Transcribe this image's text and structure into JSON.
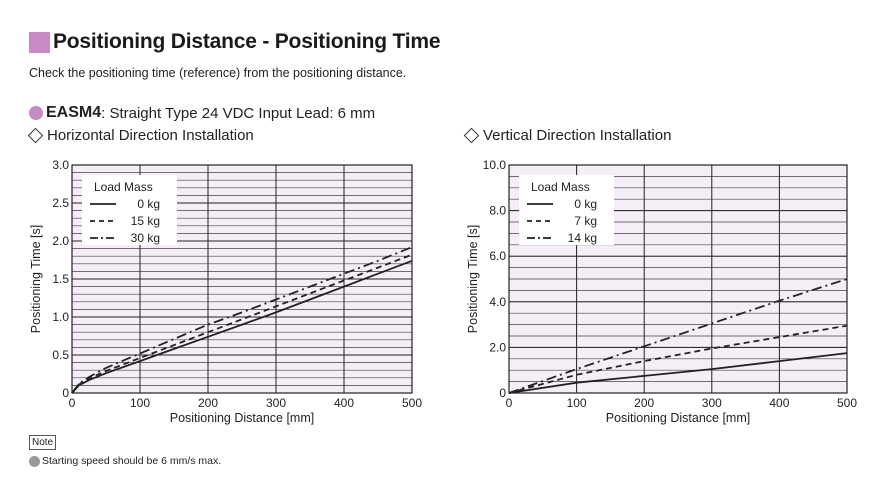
{
  "header": {
    "title": "Positioning Distance - Positioning Time",
    "subtitle": "Check the positioning time (reference) from the positioning distance."
  },
  "product": {
    "name": "EASM4",
    "spec": ": Straight Type  24 VDC Input  Lead: 6 mm"
  },
  "sections": {
    "horizontal": "Horizontal Direction Installation",
    "vertical": "Vertical Direction Installation"
  },
  "note": {
    "label": "Note",
    "text": "Starting speed should be 6 mm/s max."
  },
  "colors": {
    "accent": "#c88ac4",
    "plot_bg": "#f5eef6",
    "line": "#222222"
  },
  "chart_data": [
    {
      "type": "line",
      "xlabel": "Positioning Distance [mm]",
      "ylabel": "Positioning Time [s]",
      "xlim": [
        0,
        500
      ],
      "ylim": [
        0,
        3.0
      ],
      "xticks": [
        0,
        100,
        200,
        300,
        400,
        500
      ],
      "xtick_labels": [
        "0",
        "100",
        "200",
        "300",
        "400",
        "500"
      ],
      "yticks": [
        0,
        0.5,
        1.0,
        1.5,
        2.0,
        2.5,
        3.0
      ],
      "ytick_labels": [
        "0",
        "0.5",
        "1.0",
        "1.5",
        "2.0",
        "2.5",
        "3.0"
      ],
      "legend_title": "Load Mass",
      "legend_position": "top-left",
      "grid": true,
      "series": [
        {
          "name": "0 kg",
          "style": "solid",
          "x": [
            0,
            10,
            25,
            50,
            100,
            150,
            200,
            250,
            300,
            350,
            400,
            450,
            500
          ],
          "y": [
            0,
            0.1,
            0.17,
            0.26,
            0.42,
            0.58,
            0.74,
            0.9,
            1.06,
            1.23,
            1.4,
            1.57,
            1.74
          ]
        },
        {
          "name": "15 kg",
          "style": "dashed",
          "x": [
            0,
            10,
            25,
            50,
            100,
            150,
            200,
            250,
            300,
            350,
            400,
            450,
            500
          ],
          "y": [
            0,
            0.11,
            0.19,
            0.29,
            0.46,
            0.63,
            0.8,
            0.97,
            1.14,
            1.31,
            1.48,
            1.65,
            1.82
          ]
        },
        {
          "name": "30 kg",
          "style": "dashdot",
          "x": [
            0,
            10,
            25,
            50,
            100,
            150,
            200,
            250,
            300,
            350,
            400,
            450,
            500
          ],
          "y": [
            0,
            0.12,
            0.21,
            0.33,
            0.52,
            0.71,
            0.9,
            1.06,
            1.23,
            1.4,
            1.57,
            1.74,
            1.92
          ]
        }
      ]
    },
    {
      "type": "line",
      "xlabel": "Positioning Distance [mm]",
      "ylabel": "Positioning Time [s]",
      "xlim": [
        0,
        500
      ],
      "ylim": [
        0,
        10.0
      ],
      "xticks": [
        0,
        100,
        200,
        300,
        400,
        500
      ],
      "xtick_labels": [
        "0",
        "100",
        "200",
        "300",
        "400",
        "500"
      ],
      "yticks": [
        0,
        2.0,
        4.0,
        6.0,
        8.0,
        10.0
      ],
      "ytick_labels": [
        "0",
        "2.0",
        "4.0",
        "6.0",
        "8.0",
        "10.0"
      ],
      "legend_title": "Load Mass",
      "legend_position": "top-left",
      "grid": true,
      "series": [
        {
          "name": "0 kg",
          "style": "solid",
          "x": [
            0,
            100,
            200,
            300,
            400,
            500
          ],
          "y": [
            0,
            0.45,
            0.75,
            1.05,
            1.4,
            1.75
          ]
        },
        {
          "name": "7 kg",
          "style": "dashed",
          "x": [
            0,
            100,
            200,
            300,
            400,
            500
          ],
          "y": [
            0,
            0.8,
            1.4,
            1.95,
            2.45,
            2.95
          ]
        },
        {
          "name": "14 kg",
          "style": "dashdot",
          "x": [
            0,
            100,
            200,
            300,
            400,
            500
          ],
          "y": [
            0,
            1.05,
            2.05,
            3.05,
            4.05,
            5.0
          ]
        }
      ]
    }
  ]
}
